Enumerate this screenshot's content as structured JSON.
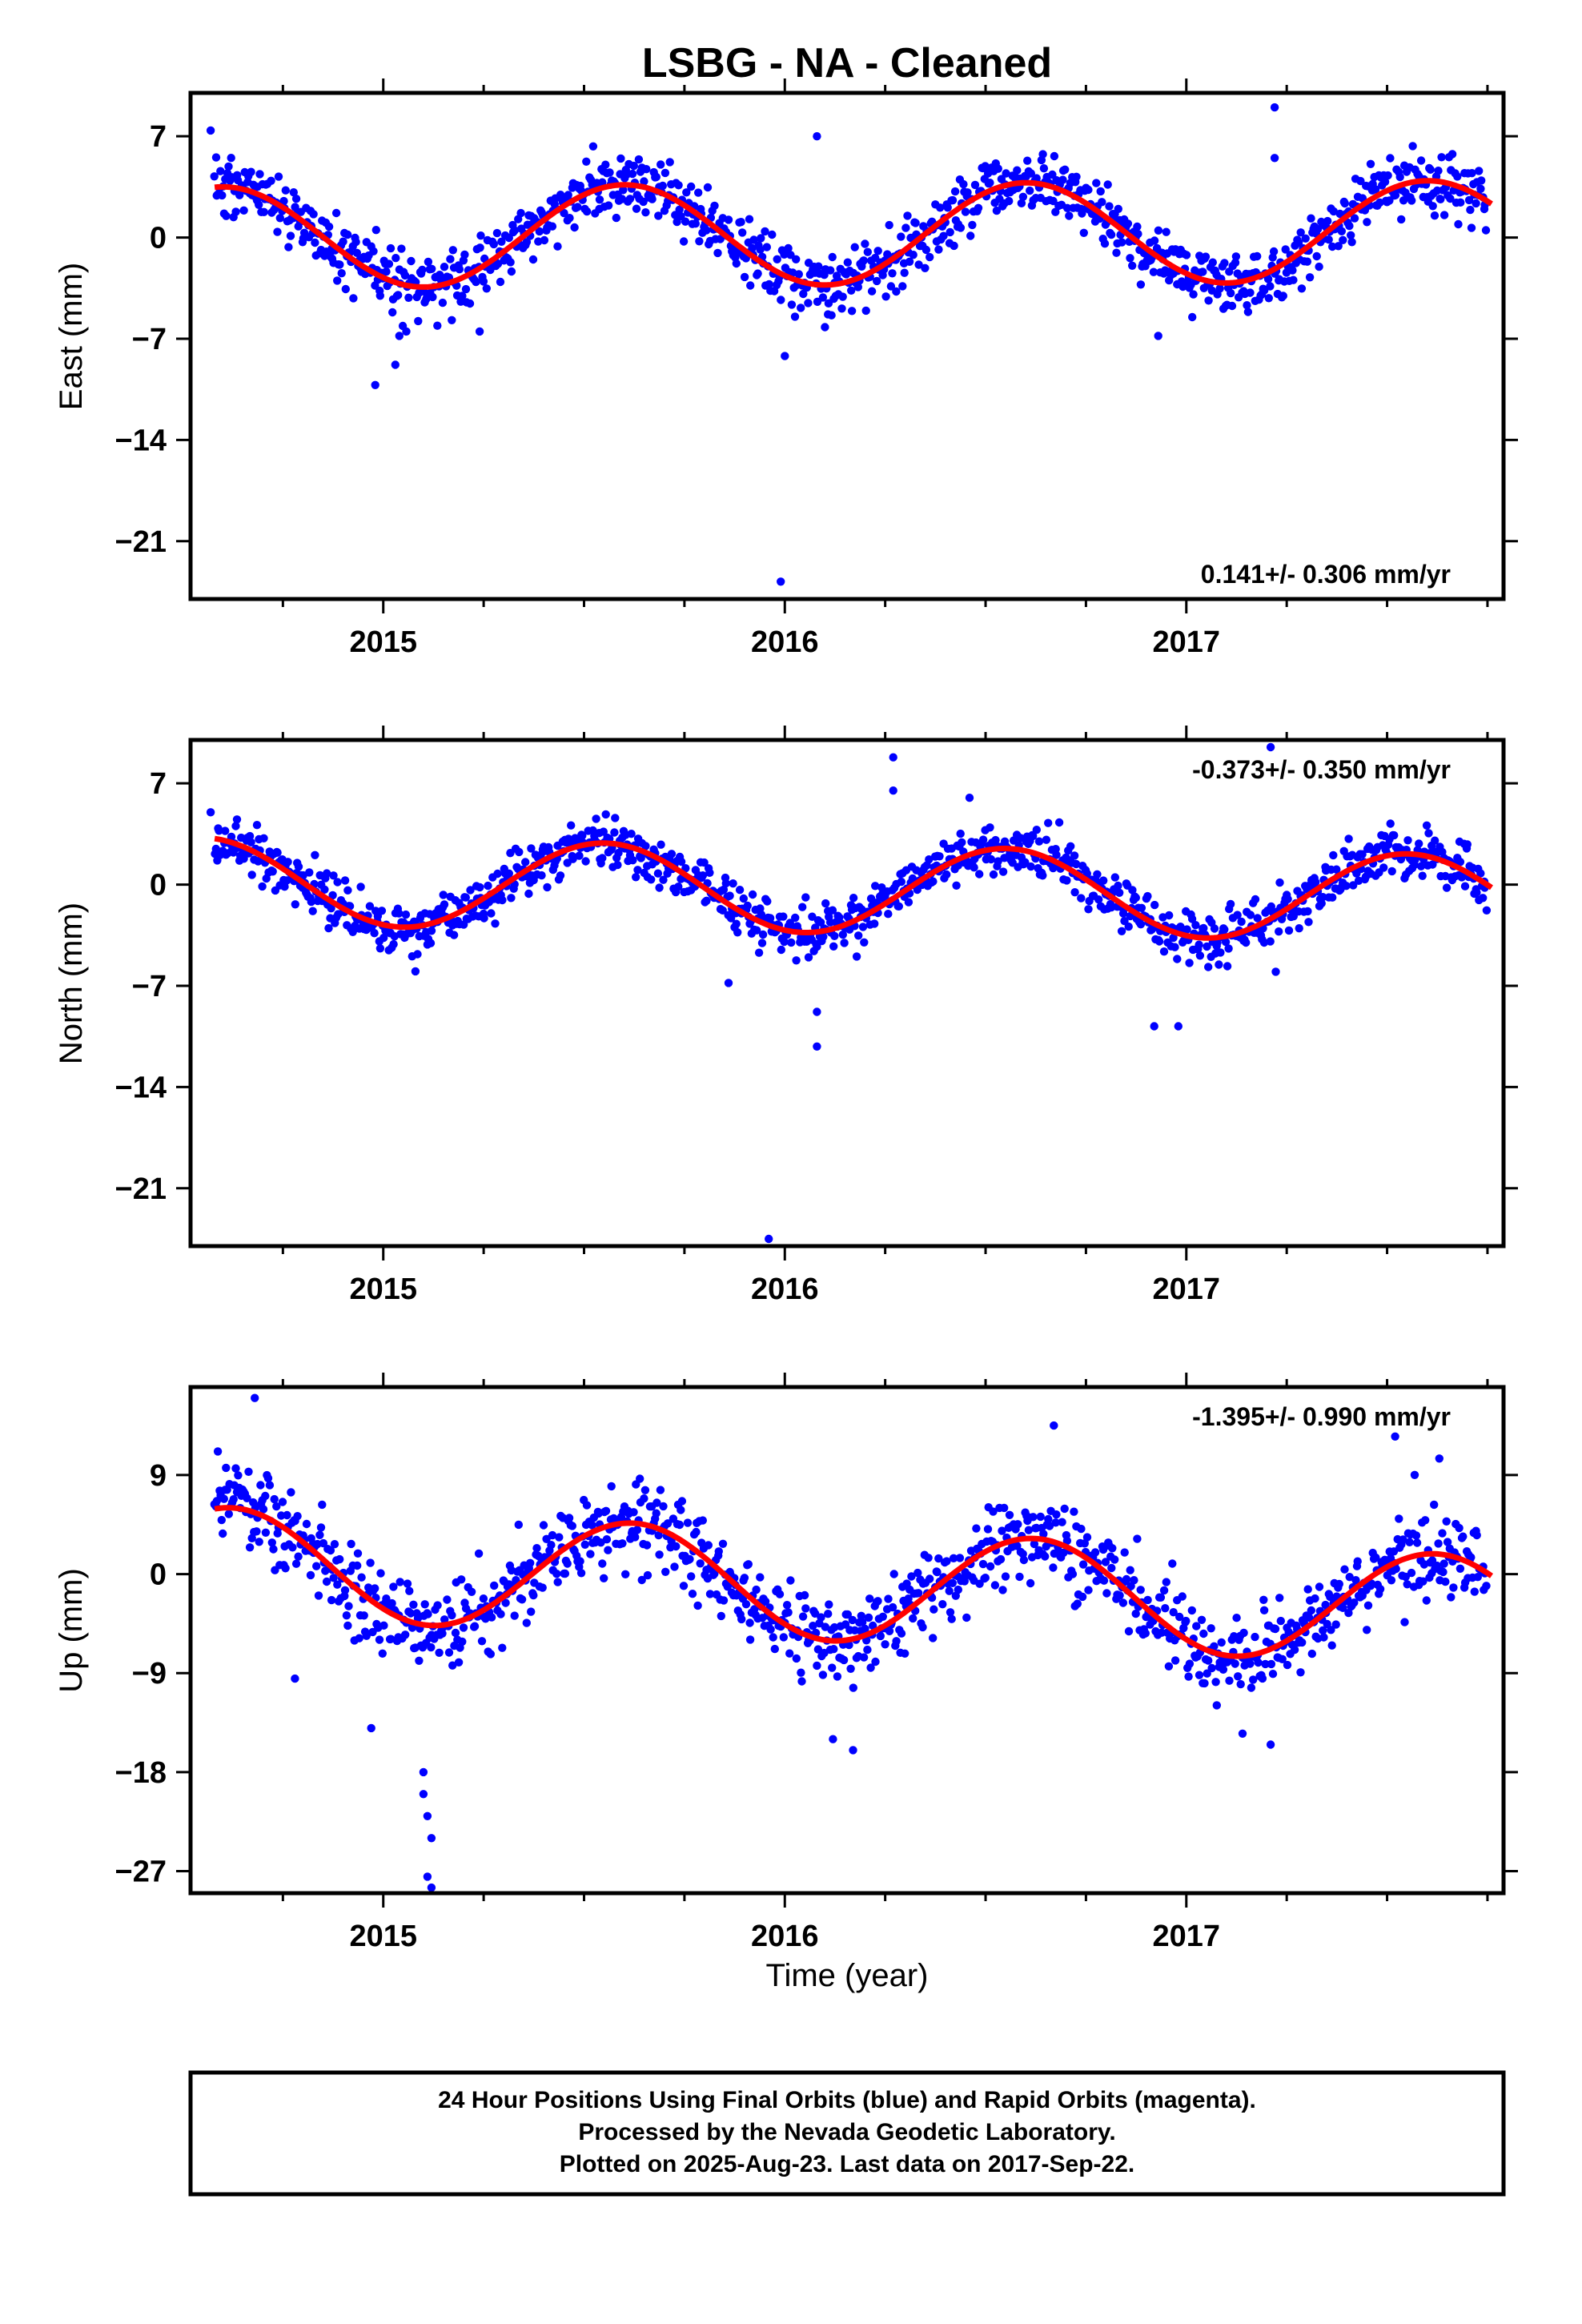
{
  "title": "LSBG  - NA - Cleaned",
  "xlabel": "Time (year)",
  "footer": {
    "line1": "24 Hour Positions Using Final Orbits (blue) and Rapid Orbits (magenta).",
    "line2": "Processed by the Nevada Geodetic Laboratory.",
    "line3": "Plotted on 2025-Aug-23. Last data on 2017-Sep-22."
  },
  "colors": {
    "points": "#0000ff",
    "fit": "#ff0000",
    "frame": "#000000"
  },
  "chart_data": [
    {
      "type": "scatter",
      "panel": "east",
      "ylabel": "East (mm)",
      "rate_text": "0.141+/- 0.306 mm/yr",
      "rate_position": "bottom-right",
      "xlim": [
        2014.52,
        2017.79
      ],
      "ylim": [
        -25,
        10
      ],
      "xticks": [
        2015,
        2016,
        2017
      ],
      "yticks": [
        7,
        0,
        -7,
        -14,
        -21
      ],
      "grid": false,
      "fit": {
        "mean": 0.2,
        "trend": 0.141,
        "amplitude": 3.5,
        "peak_year_fraction": 0.6,
        "x0": 2016.0
      },
      "scatter": 2.0,
      "n_points": 1090,
      "outliers": [
        {
          "x": 2014.98,
          "y": -10.2
        },
        {
          "x": 2015.03,
          "y": -8.8
        },
        {
          "x": 2015.04,
          "y": -6.8
        },
        {
          "x": 2015.24,
          "y": -6.5
        },
        {
          "x": 2015.99,
          "y": -23.8
        },
        {
          "x": 2016.0,
          "y": -8.2
        },
        {
          "x": 2016.08,
          "y": 7.0
        },
        {
          "x": 2016.1,
          "y": -6.2
        },
        {
          "x": 2017.22,
          "y": 9.0
        },
        {
          "x": 2017.22,
          "y": 5.5
        },
        {
          "x": 2016.93,
          "y": -6.8
        },
        {
          "x": 2014.57,
          "y": 7.4
        }
      ]
    },
    {
      "type": "scatter",
      "panel": "north",
      "ylabel": "North (mm)",
      "rate_text": "-0.373+/- 0.350 mm/yr",
      "rate_position": "top-right",
      "xlim": [
        2014.52,
        2017.79
      ],
      "ylim": [
        -25,
        10
      ],
      "xticks": [
        2015,
        2016,
        2017
      ],
      "yticks": [
        7,
        0,
        -7,
        -14,
        -21
      ],
      "grid": false,
      "fit": {
        "mean": -0.3,
        "trend": -0.373,
        "amplitude": 3.0,
        "peak_year_fraction": 0.55,
        "x0": 2016.0
      },
      "scatter": 1.6,
      "n_points": 1090,
      "outliers": [
        {
          "x": 2016.27,
          "y": 8.8
        },
        {
          "x": 2016.27,
          "y": 6.5
        },
        {
          "x": 2017.21,
          "y": 9.5
        },
        {
          "x": 2016.08,
          "y": -8.8
        },
        {
          "x": 2016.08,
          "y": -11.2
        },
        {
          "x": 2015.96,
          "y": -24.5
        },
        {
          "x": 2015.08,
          "y": -6.0
        },
        {
          "x": 2015.86,
          "y": -6.8
        },
        {
          "x": 2016.46,
          "y": 6.0
        },
        {
          "x": 2014.57,
          "y": 5.0
        },
        {
          "x": 2016.92,
          "y": -9.8
        },
        {
          "x": 2016.98,
          "y": -9.8
        }
      ]
    },
    {
      "type": "scatter",
      "panel": "up",
      "ylabel": "Up (mm)",
      "rate_text": "-1.395+/- 0.990 mm/yr",
      "rate_position": "top-right",
      "xlim": [
        2014.52,
        2017.79
      ],
      "ylim": [
        -29,
        17
      ],
      "xticks": [
        2015,
        2016,
        2017
      ],
      "yticks": [
        9,
        0,
        -9,
        -18,
        -27
      ],
      "grid": false,
      "fit": {
        "mean": -0.9,
        "trend": -1.395,
        "amplitude": 5.0,
        "peak_year_fraction": 0.62,
        "x0": 2016.0
      },
      "scatter": 3.6,
      "n_points": 1090,
      "outliers": [
        {
          "x": 2014.68,
          "y": 16.0
        },
        {
          "x": 2015.1,
          "y": -18.0
        },
        {
          "x": 2015.1,
          "y": -20.0
        },
        {
          "x": 2015.11,
          "y": -22.0
        },
        {
          "x": 2015.12,
          "y": -24.0
        },
        {
          "x": 2015.11,
          "y": -27.5
        },
        {
          "x": 2015.12,
          "y": -28.5
        },
        {
          "x": 2014.97,
          "y": -14.0
        },
        {
          "x": 2016.12,
          "y": -15.0
        },
        {
          "x": 2016.17,
          "y": -16.0
        },
        {
          "x": 2017.14,
          "y": -14.5
        },
        {
          "x": 2017.21,
          "y": -15.5
        },
        {
          "x": 2016.67,
          "y": 13.5
        },
        {
          "x": 2017.52,
          "y": 12.5
        },
        {
          "x": 2017.63,
          "y": 10.5
        },
        {
          "x": 2014.78,
          "y": -9.5
        }
      ]
    }
  ]
}
